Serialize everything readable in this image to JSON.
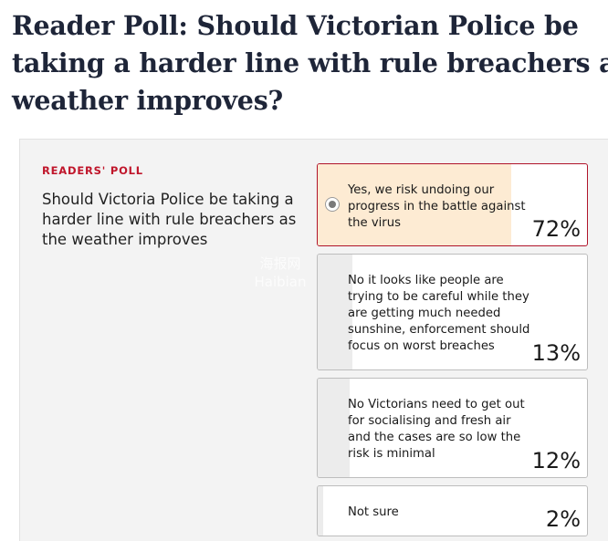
{
  "article": {
    "headline": "Reader Poll: Should Victorian Police be taking a harder line with rule breachers as weather improves?"
  },
  "poll": {
    "kicker": "READERS' POLL",
    "question": "Should Victoria Police be taking a harder line with rule breachers as the weather improves",
    "watermark": "海报网 Haibian",
    "options": [
      {
        "label": "Yes, we risk undoing our progress in the battle against the virus",
        "percent_text": "72%",
        "percent": 72,
        "selected": true
      },
      {
        "label": "No it looks like people are trying to be careful while they are getting much needed sunshine, enforcement should focus on worst breaches",
        "percent_text": "13%",
        "percent": 13,
        "selected": false
      },
      {
        "label": "No Victorians need to get out for socialising and fresh air and the cases are so low the risk is minimal",
        "percent_text": "12%",
        "percent": 12,
        "selected": false
      },
      {
        "label": "Not sure",
        "percent_text": "2%",
        "percent": 2,
        "selected": false
      }
    ]
  },
  "colors": {
    "headline": "#1e2538",
    "kicker": "#c0162b",
    "selected_border": "#b0142a",
    "selected_fill": "#fdebd3",
    "result_fill": "#ececec",
    "panel_bg": "#f3f3f3"
  }
}
